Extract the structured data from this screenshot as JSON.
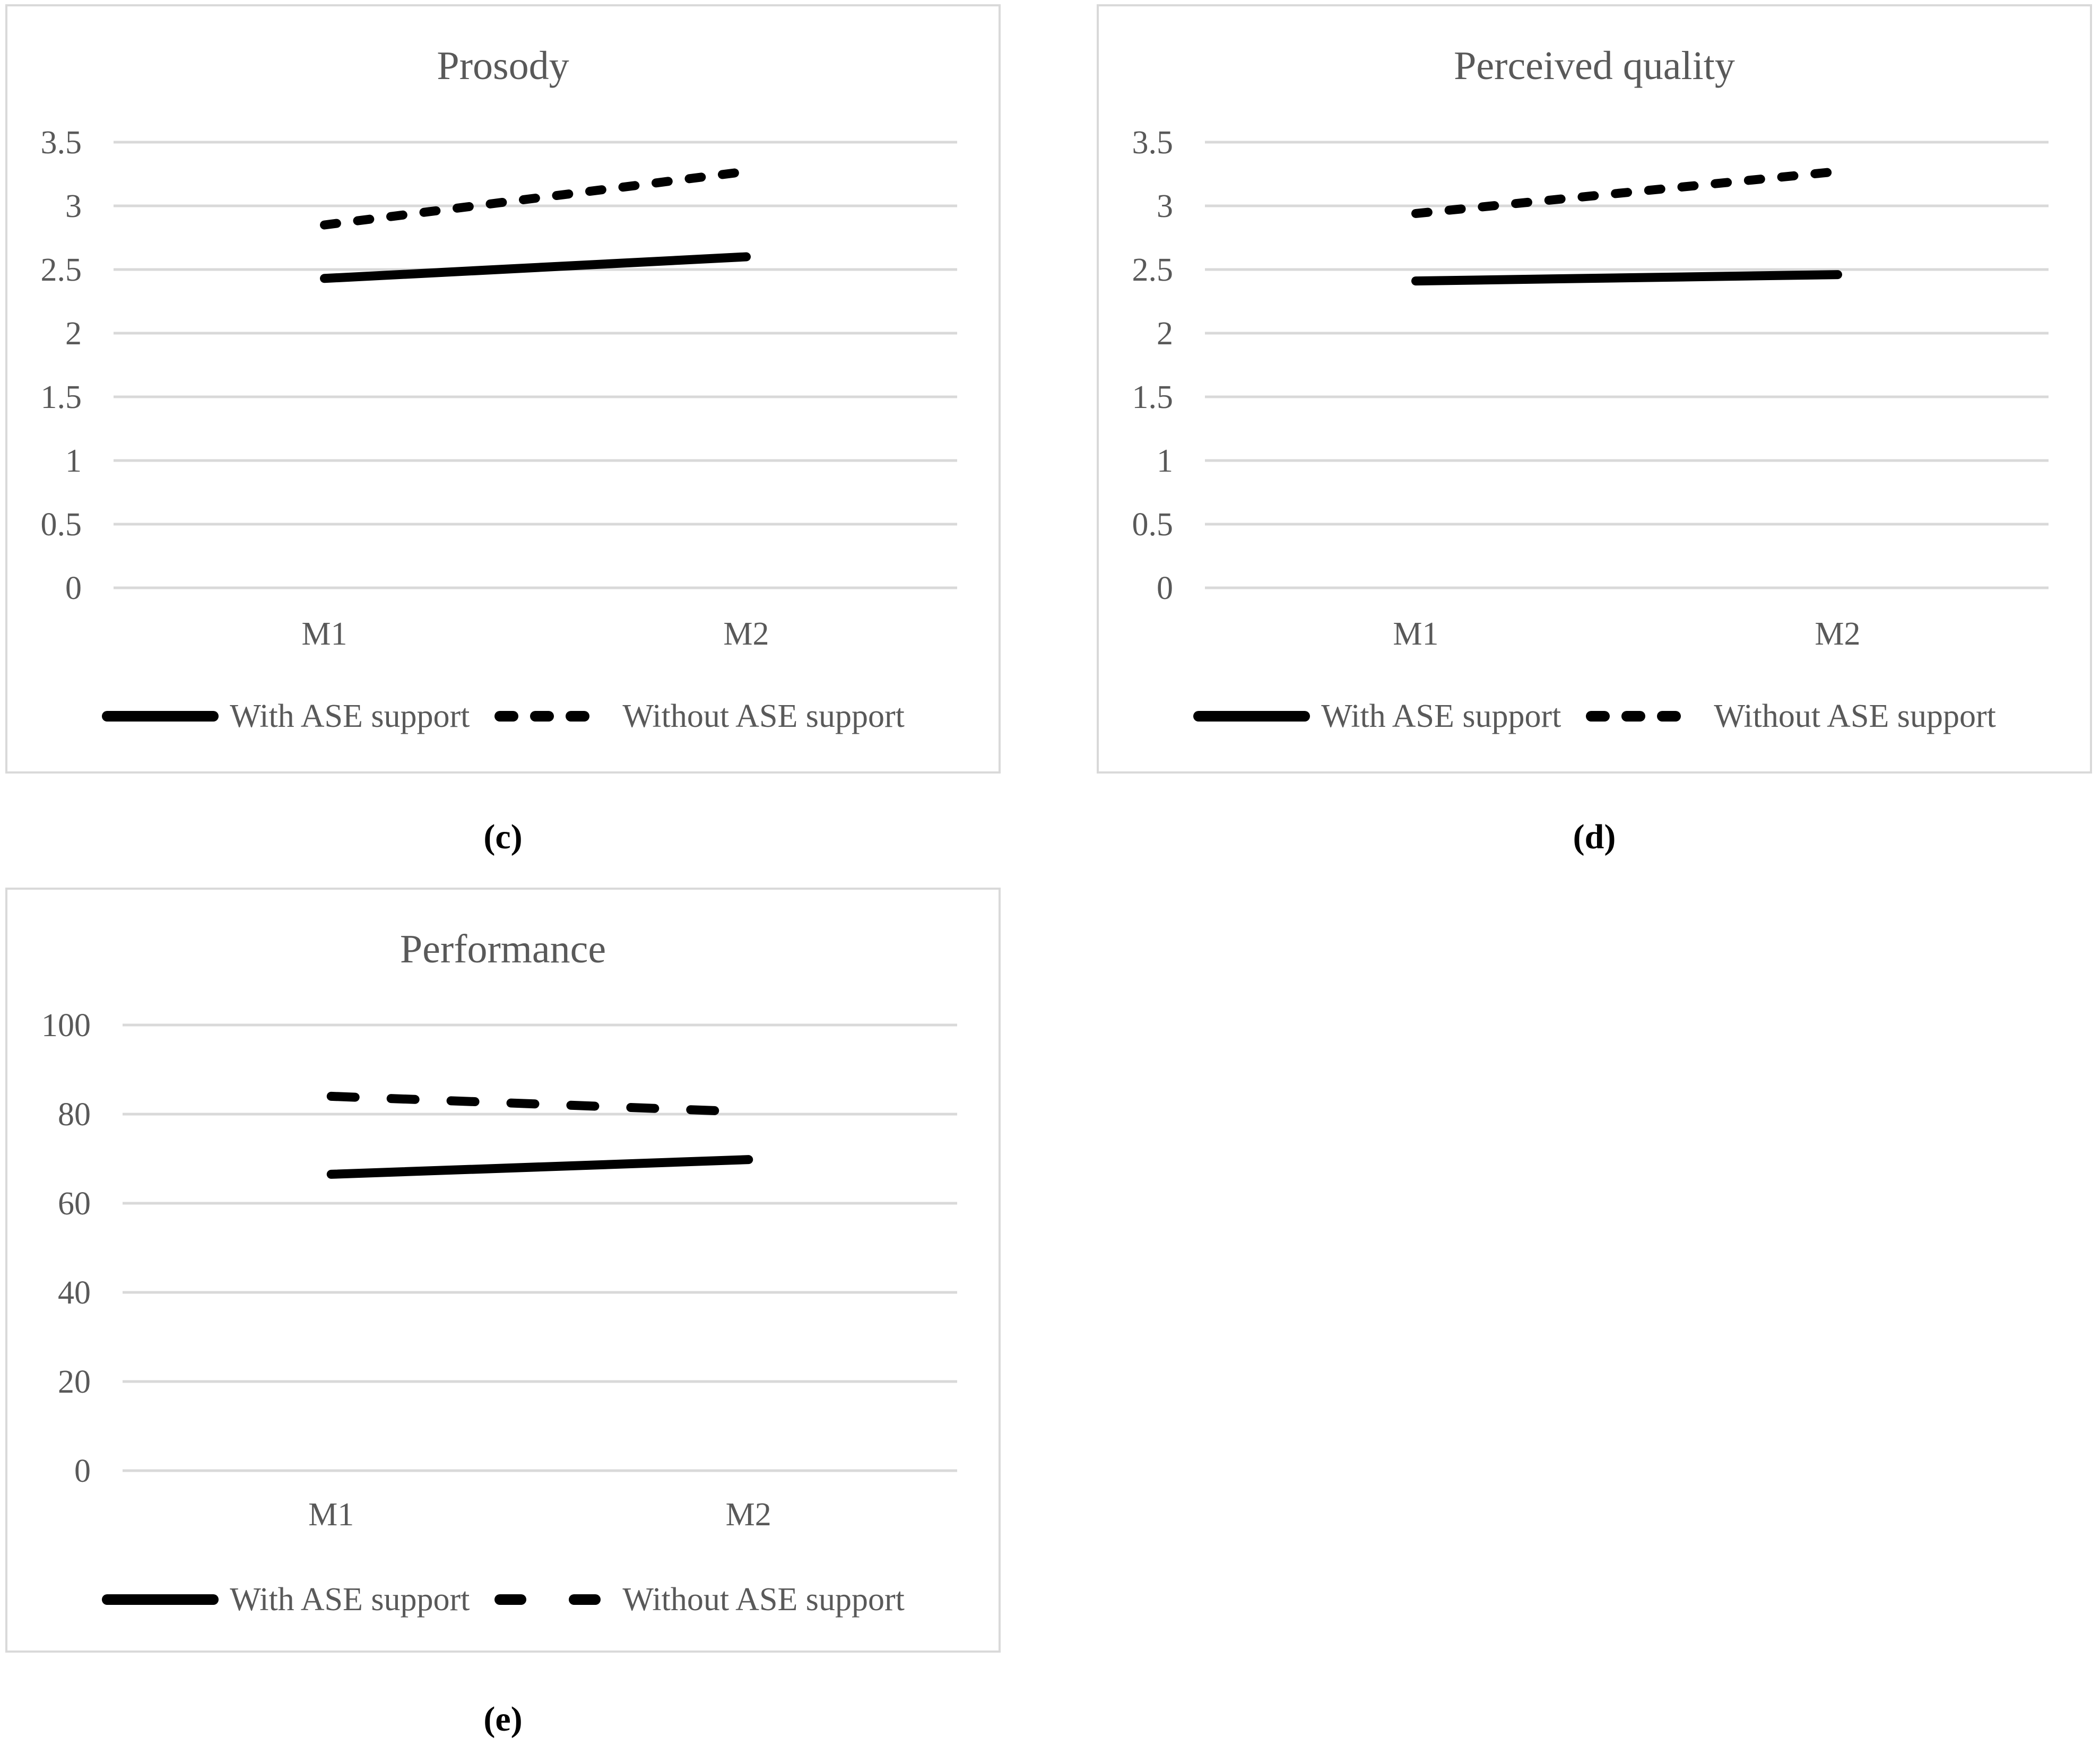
{
  "figure": {
    "background": "#ffffff",
    "axis_text_color": "#595959",
    "grid_color": "#d9d9d9",
    "series_color": "#000000",
    "caption_color": "#000000"
  },
  "chart_data": [
    {
      "type": "line",
      "title": "Prosody",
      "caption": "(c)",
      "categories": [
        "M1",
        "M2"
      ],
      "series": [
        {
          "name": "With ASE support",
          "style": "solid",
          "values": [
            2.43,
            2.6
          ]
        },
        {
          "name": "Without ASE support",
          "style": "dashed",
          "values": [
            2.85,
            3.27
          ]
        }
      ],
      "xlabel": "",
      "ylabel": "",
      "ylim": [
        0,
        3.5
      ],
      "yticks": [
        "3.5",
        "3",
        "2.5",
        "2",
        "1.5",
        "1",
        "0.5",
        "0"
      ],
      "grid": true,
      "legend_position": "bottom"
    },
    {
      "type": "line",
      "title": "Perceived quality",
      "caption": "(d)",
      "categories": [
        "M1",
        "M2"
      ],
      "series": [
        {
          "name": "With ASE support",
          "style": "solid",
          "values": [
            2.41,
            2.46
          ]
        },
        {
          "name": "Without ASE support",
          "style": "dashed",
          "values": [
            2.94,
            3.27
          ]
        }
      ],
      "xlabel": "",
      "ylabel": "",
      "ylim": [
        0,
        3.5
      ],
      "yticks": [
        "3.5",
        "3",
        "2.5",
        "2",
        "1.5",
        "1",
        "0.5",
        "0"
      ],
      "grid": true,
      "legend_position": "bottom"
    },
    {
      "type": "line",
      "title": "Performance",
      "caption": "(e)",
      "categories": [
        "M1",
        "M2"
      ],
      "series": [
        {
          "name": "With ASE support",
          "style": "solid",
          "values": [
            66.5,
            69.8
          ]
        },
        {
          "name": "Without ASE support",
          "style": "dashed",
          "values": [
            84,
            80.5
          ]
        }
      ],
      "xlabel": "",
      "ylabel": "",
      "ylim": [
        0,
        100
      ],
      "yticks": [
        "100",
        "80",
        "60",
        "40",
        "20",
        "0"
      ],
      "grid": true,
      "legend_position": "bottom"
    }
  ]
}
